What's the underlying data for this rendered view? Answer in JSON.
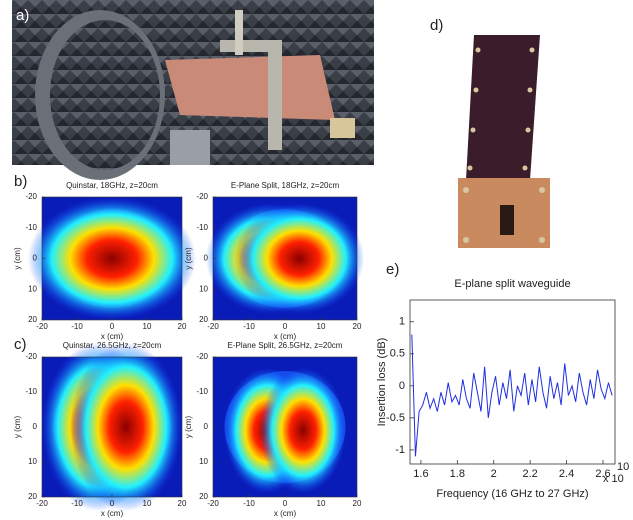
{
  "panel_labels": [
    "a)",
    "b)",
    "c)",
    "d)",
    "e)"
  ],
  "chart_data": [
    {
      "type": "heatmap",
      "title": "Quinstar, 18GHz, z=20cm",
      "x_label": "x (cm)",
      "y_label": "y (cm)",
      "xlim": [
        -20,
        20
      ],
      "ylim": [
        -20,
        20
      ],
      "y_inverted": true,
      "xticks": [
        -20,
        -10,
        0,
        10,
        20
      ],
      "yticks": [
        -20,
        -10,
        0,
        10,
        20
      ]
    },
    {
      "type": "heatmap",
      "title": "E-Plane Split, 18GHz, z=20cm",
      "x_label": "x (cm)",
      "y_label": "y (cm)",
      "xlim": [
        -20,
        20
      ],
      "ylim": [
        -20,
        20
      ],
      "y_inverted": true,
      "xticks": [
        -20,
        -10,
        0,
        10,
        20
      ],
      "yticks": [
        -20,
        -10,
        0,
        10,
        20
      ]
    },
    {
      "type": "heatmap",
      "title": "Quinstar, 26.5GHz, z=20cm",
      "x_label": "x (cm)",
      "y_label": "y (cm)",
      "xlim": [
        -20,
        20
      ],
      "ylim": [
        -20,
        20
      ],
      "y_inverted": true,
      "xticks": [
        -20,
        -10,
        0,
        10,
        20
      ],
      "yticks": [
        -20,
        -10,
        0,
        10,
        20
      ]
    },
    {
      "type": "heatmap",
      "title": "E-Plane Split, 26.5GHz, z=20cm",
      "x_label": "x (cm)",
      "y_label": "y (cm)",
      "xlim": [
        -20,
        20
      ],
      "ylim": [
        -20,
        20
      ],
      "y_inverted": true,
      "xticks": [
        -20,
        -10,
        0,
        10,
        20
      ],
      "yticks": [
        -20,
        -10,
        0,
        10,
        20
      ]
    },
    {
      "type": "line",
      "title": "E-plane split waveguide",
      "x_label": "Frequency (16 GHz to 27 GHz)",
      "y_label": "Insertion loss (dB)",
      "x_exponent_label": "x 10",
      "x_exponent": "10",
      "xlim": [
        1.54,
        2.666
      ],
      "ylim": [
        -1.22,
        1.34
      ],
      "xticks": [
        1.6,
        1.8,
        2,
        2.2,
        2.4,
        2.6
      ],
      "yticks": [
        -1,
        -0.5,
        0,
        0.5,
        1
      ],
      "x": [
        1.55,
        1.57,
        1.59,
        1.61,
        1.63,
        1.65,
        1.67,
        1.69,
        1.71,
        1.73,
        1.75,
        1.77,
        1.79,
        1.81,
        1.83,
        1.85,
        1.87,
        1.89,
        1.91,
        1.93,
        1.95,
        1.97,
        1.99,
        2.01,
        2.03,
        2.05,
        2.07,
        2.09,
        2.11,
        2.13,
        2.15,
        2.17,
        2.19,
        2.21,
        2.23,
        2.25,
        2.27,
        2.29,
        2.31,
        2.33,
        2.35,
        2.37,
        2.39,
        2.41,
        2.43,
        2.45,
        2.47,
        2.49,
        2.51,
        2.53,
        2.55,
        2.57,
        2.59,
        2.61,
        2.63,
        2.65
      ],
      "series": [
        {
          "color": "#1f2fe0",
          "values": [
            0.8,
            -1.1,
            -0.4,
            -0.3,
            -0.1,
            -0.35,
            -0.2,
            -0.4,
            -0.1,
            -0.3,
            0.05,
            -0.25,
            -0.15,
            -0.3,
            0.1,
            -0.2,
            -0.35,
            0.2,
            -0.1,
            -0.4,
            0.3,
            -0.5,
            -0.1,
            0.15,
            -0.3,
            0.05,
            -0.2,
            0.25,
            -0.4,
            0.0,
            -0.15,
            0.2,
            -0.3,
            0.1,
            -0.25,
            0.3,
            -0.1,
            -0.35,
            0.15,
            -0.2,
            0.05,
            -0.3,
            0.35,
            -0.15,
            0.0,
            -0.25,
            0.2,
            -0.1,
            -0.3,
            0.1,
            -0.2,
            0.25,
            -0.05,
            -0.2,
            0.05,
            -0.15
          ]
        }
      ]
    }
  ]
}
